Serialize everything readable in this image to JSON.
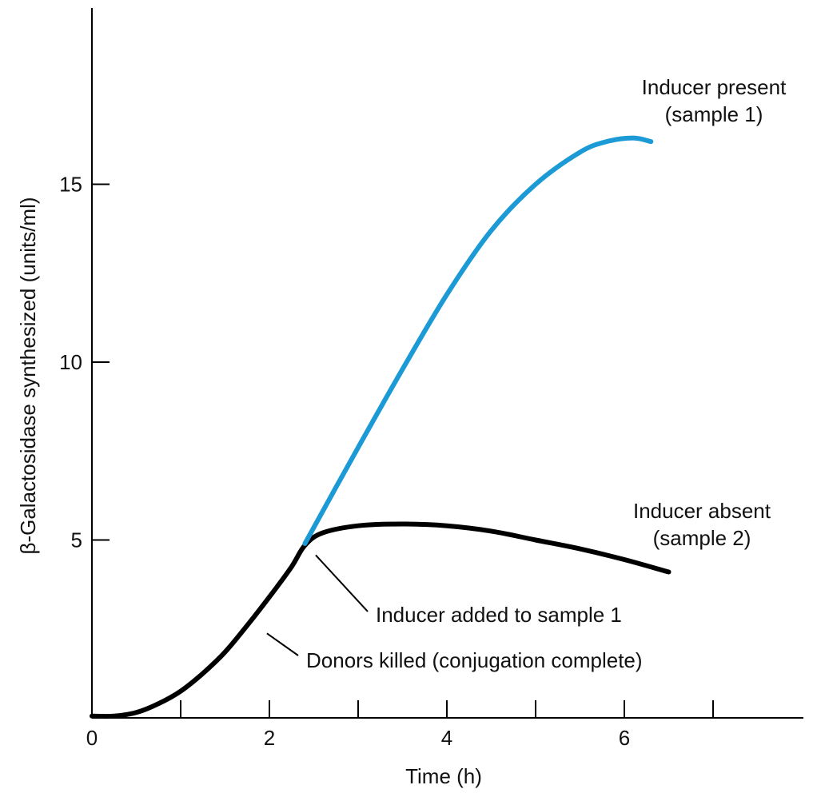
{
  "chart_data": {
    "type": "line",
    "xlabel": "Time (h)",
    "ylabel": "β-Galactosidase synthesized (units/ml)",
    "xlim": [
      0,
      8
    ],
    "ylim": [
      0,
      20
    ],
    "x_ticks": [
      0,
      1,
      2,
      3,
      4,
      5,
      6,
      7
    ],
    "x_tick_labels": [
      "0",
      "",
      "2",
      "",
      "4",
      "",
      "6",
      ""
    ],
    "y_ticks": [
      5,
      10,
      15
    ],
    "y_tick_labels": [
      "5",
      "10",
      "15"
    ],
    "grid": false,
    "series": [
      {
        "name": "Inducer present (sample 1)",
        "color": "#1b9ad6",
        "x": [
          2.4,
          3.0,
          3.5,
          4.0,
          4.5,
          5.0,
          5.5,
          5.8,
          6.1,
          6.3
        ],
        "y": [
          4.9,
          7.6,
          9.8,
          11.9,
          13.7,
          15.0,
          15.9,
          16.2,
          16.3,
          16.2
        ]
      },
      {
        "name": "Inducer absent (sample 2)",
        "color": "#000000",
        "x": [
          0,
          0.25,
          0.5,
          0.75,
          1.0,
          1.25,
          1.5,
          1.75,
          2.0,
          2.25,
          2.4,
          2.6,
          3.0,
          3.5,
          4.0,
          4.5,
          5.0,
          5.5,
          6.0,
          6.5
        ],
        "y": [
          0.05,
          0.05,
          0.15,
          0.4,
          0.75,
          1.25,
          1.85,
          2.6,
          3.4,
          4.25,
          4.85,
          5.2,
          5.4,
          5.45,
          5.4,
          5.25,
          5.0,
          4.75,
          4.45,
          4.1
        ]
      }
    ],
    "annotations": [
      {
        "label_lines": [
          "Inducer present",
          "(sample 1)"
        ],
        "series": 0
      },
      {
        "label_lines": [
          "Inducer absent",
          "(sample 2)"
        ],
        "series": 1
      },
      {
        "text": "Inducer added to sample 1",
        "point": [
          2.45,
          4.8
        ]
      },
      {
        "text": "Donors killed (conjugation complete)",
        "point": [
          1.9,
          2.6
        ]
      }
    ]
  }
}
